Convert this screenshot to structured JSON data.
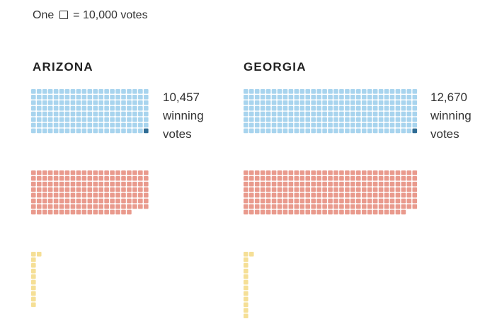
{
  "legend": {
    "prefix": "One",
    "suffix": "= 10,000 votes"
  },
  "colors": {
    "blue": "#A8D4EE",
    "blue_highlight": "#2F6C94",
    "red": "#E99A8D",
    "yellow": "#F5DF96"
  },
  "chart_data": [
    {
      "type": "waffle",
      "title": "ARIZONA",
      "unit": "One square = 10,000 votes",
      "annotation": {
        "number": "10,457",
        "line1": "winning",
        "line2": "votes"
      },
      "series": [
        {
          "color": "blue",
          "squares": 168
        },
        {
          "color": "red",
          "squares": 165
        },
        {
          "color": "yellow",
          "squares": 11
        }
      ]
    },
    {
      "type": "waffle",
      "title": "GEORGIA",
      "annotation": {
        "number": "12,670",
        "line1": "winning",
        "line2": "votes"
      },
      "series": [
        {
          "color": "blue",
          "squares": 248
        },
        {
          "color": "red",
          "squares": 246
        },
        {
          "color": "yellow",
          "squares": 13
        }
      ]
    }
  ]
}
